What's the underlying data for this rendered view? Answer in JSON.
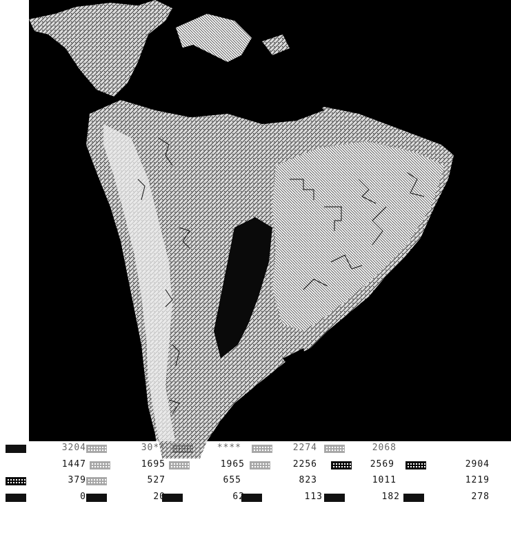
{
  "legend": {
    "rows": [
      {
        "cells": [
          {
            "value": "3204",
            "swatch": "dark"
          },
          {
            "value": "30**",
            "swatch": "light"
          },
          {
            "value": "****",
            "swatch": "light"
          },
          {
            "value": "****",
            "swatch": "light"
          },
          {
            "value": "2274",
            "swatch": "light"
          },
          {
            "value": "2068",
            "swatch": "light"
          }
        ]
      },
      {
        "cells": [
          {
            "value": "1447",
            "swatch": "none"
          },
          {
            "value": "1695",
            "swatch": "light"
          },
          {
            "value": "1965",
            "swatch": "light"
          },
          {
            "value": "2256",
            "swatch": "light"
          },
          {
            "value": "2569",
            "swatch": "mid"
          },
          {
            "value": "2904",
            "swatch": "mid"
          }
        ]
      },
      {
        "cells": [
          {
            "value": "379",
            "swatch": "mid"
          },
          {
            "value": "527",
            "swatch": "light"
          },
          {
            "value": "655",
            "swatch": "none"
          },
          {
            "value": "823",
            "swatch": "none"
          },
          {
            "value": "1011",
            "swatch": "none"
          },
          {
            "value": "1219",
            "swatch": "none"
          }
        ]
      },
      {
        "cells": [
          {
            "value": "0",
            "swatch": "dark"
          },
          {
            "value": "20",
            "swatch": "dark"
          },
          {
            "value": "62",
            "swatch": "dark"
          },
          {
            "value": "113",
            "swatch": "dark"
          },
          {
            "value": "182",
            "swatch": "dark"
          },
          {
            "value": "278",
            "swatch": "dark"
          }
        ]
      }
    ]
  }
}
